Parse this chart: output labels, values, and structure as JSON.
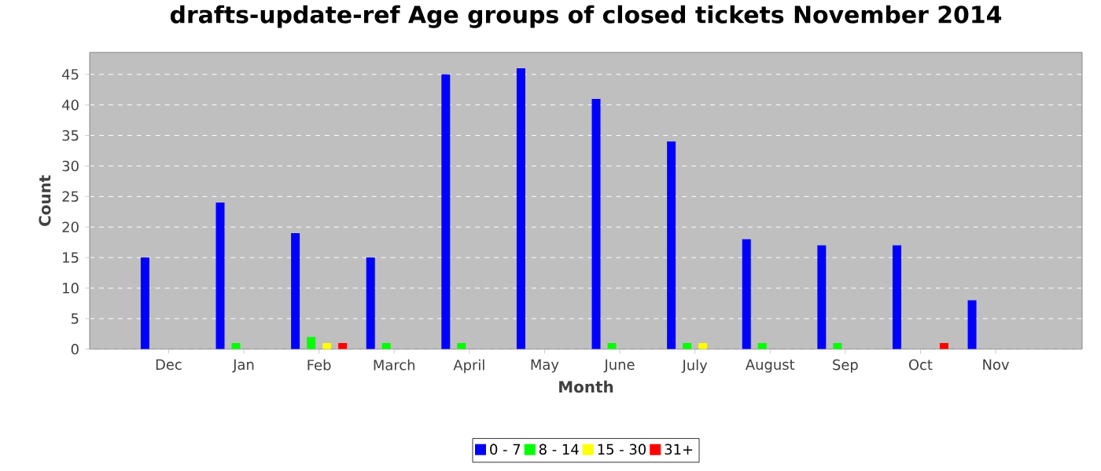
{
  "chart_data": {
    "type": "bar",
    "title": "drafts-update-ref Age groups of closed tickets November 2014",
    "xlabel": "Month",
    "ylabel": "Count",
    "categories": [
      "Dec",
      "Jan",
      "Feb",
      "March",
      "April",
      "May",
      "June",
      "July",
      "August",
      "Sep",
      "Oct",
      "Nov"
    ],
    "series": [
      {
        "name": "0 - 7",
        "color": "#0000ff",
        "values": [
          15,
          24,
          19,
          15,
          45,
          46,
          41,
          34,
          18,
          17,
          17,
          8
        ]
      },
      {
        "name": "8 - 14",
        "color": "#00ff00",
        "values": [
          0,
          1,
          2,
          1,
          1,
          0,
          1,
          1,
          1,
          1,
          0,
          0
        ]
      },
      {
        "name": "15 - 30",
        "color": "#ffff00",
        "values": [
          0,
          0,
          1,
          0,
          0,
          0,
          0,
          1,
          0,
          0,
          0,
          0
        ]
      },
      {
        "name": "31+",
        "color": "#ff0000",
        "values": [
          0,
          0,
          1,
          0,
          0,
          0,
          0,
          0,
          0,
          0,
          1,
          0
        ]
      }
    ],
    "ylim": [
      0,
      48.6
    ],
    "yticks": [
      0,
      5,
      10,
      15,
      20,
      25,
      30,
      35,
      40,
      45
    ],
    "grid": "y",
    "legend": "bottom"
  }
}
